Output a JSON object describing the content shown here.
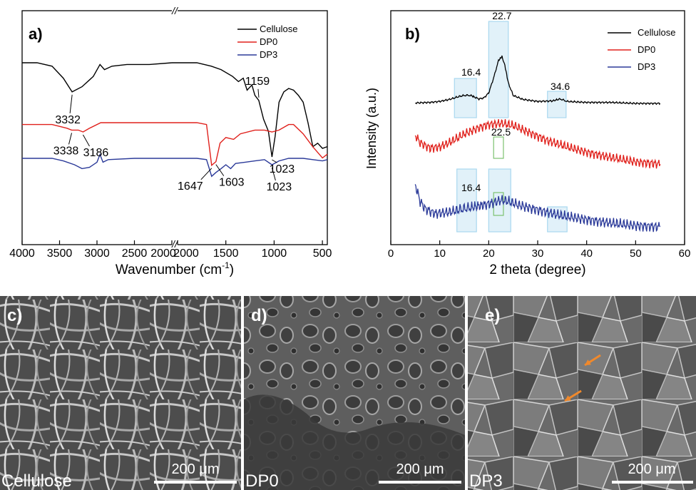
{
  "chart_data": [
    {
      "panel": "a)",
      "type": "line",
      "xlabel_main": "Wavenumber (cm",
      "xlabel_sup": "-1",
      "xlabel_close": ")",
      "x_ticks": [
        "4000",
        "3500",
        "3000",
        "2500",
        "2000",
        "2000",
        "1500",
        "1000",
        "500"
      ],
      "xlim_left": [
        4000,
        2000
      ],
      "xlim_right": [
        2000,
        450
      ],
      "axis_break": "//",
      "legend_placement": "top-right",
      "series": [
        {
          "name": "Cellulose",
          "color": "#000000",
          "points": [
            [
              4000,
              0.95
            ],
            [
              3800,
              0.95
            ],
            [
              3600,
              0.93
            ],
            [
              3450,
              0.86
            ],
            [
              3332,
              0.78
            ],
            [
              3200,
              0.81
            ],
            [
              3050,
              0.87
            ],
            [
              2960,
              0.94
            ],
            [
              2900,
              0.91
            ],
            [
              2800,
              0.93
            ],
            [
              2600,
              0.94
            ],
            [
              2300,
              0.94
            ],
            [
              2000,
              0.95
            ],
            [
              1800,
              0.95
            ],
            [
              1650,
              0.93
            ],
            [
              1550,
              0.91
            ],
            [
              1430,
              0.87
            ],
            [
              1370,
              0.84
            ],
            [
              1320,
              0.86
            ],
            [
              1280,
              0.79
            ],
            [
              1230,
              0.82
            ],
            [
              1200,
              0.76
            ],
            [
              1159,
              0.73
            ],
            [
              1110,
              0.62
            ],
            [
              1060,
              0.55
            ],
            [
              1023,
              0.4
            ],
            [
              990,
              0.52
            ],
            [
              950,
              0.72
            ],
            [
              900,
              0.78
            ],
            [
              850,
              0.8
            ],
            [
              800,
              0.79
            ],
            [
              750,
              0.76
            ],
            [
              700,
              0.72
            ],
            [
              650,
              0.6
            ],
            [
              600,
              0.46
            ],
            [
              550,
              0.48
            ],
            [
              500,
              0.45
            ],
            [
              450,
              0.46
            ]
          ]
        },
        {
          "name": "DP0",
          "color": "#e0211c",
          "points": [
            [
              4000,
              0.4
            ],
            [
              3600,
              0.4
            ],
            [
              3400,
              0.38
            ],
            [
              3338,
              0.37
            ],
            [
              3250,
              0.37
            ],
            [
              3186,
              0.36
            ],
            [
              3100,
              0.38
            ],
            [
              2950,
              0.41
            ],
            [
              2850,
              0.41
            ],
            [
              2500,
              0.41
            ],
            [
              2000,
              0.41
            ],
            [
              1800,
              0.41
            ],
            [
              1700,
              0.4
            ],
            [
              1647,
              0.18
            ],
            [
              1603,
              0.2
            ],
            [
              1560,
              0.3
            ],
            [
              1500,
              0.33
            ],
            [
              1420,
              0.32
            ],
            [
              1350,
              0.35
            ],
            [
              1200,
              0.37
            ],
            [
              1100,
              0.37
            ],
            [
              1023,
              0.36
            ],
            [
              950,
              0.37
            ],
            [
              850,
              0.4
            ],
            [
              800,
              0.4
            ],
            [
              700,
              0.35
            ],
            [
              600,
              0.28
            ],
            [
              500,
              0.22
            ],
            [
              450,
              0.24
            ]
          ]
        },
        {
          "name": "DP3",
          "color": "#2b3a99",
          "points": [
            [
              4000,
              0.2
            ],
            [
              3600,
              0.2
            ],
            [
              3450,
              0.18
            ],
            [
              3300,
              0.15
            ],
            [
              3200,
              0.12
            ],
            [
              3100,
              0.13
            ],
            [
              3000,
              0.17
            ],
            [
              2960,
              0.23
            ],
            [
              2920,
              0.17
            ],
            [
              2850,
              0.19
            ],
            [
              2500,
              0.2
            ],
            [
              2000,
              0.2
            ],
            [
              1800,
              0.2
            ],
            [
              1700,
              0.19
            ],
            [
              1647,
              0.06
            ],
            [
              1603,
              0.09
            ],
            [
              1550,
              0.12
            ],
            [
              1500,
              0.15
            ],
            [
              1450,
              0.12
            ],
            [
              1400,
              0.16
            ],
            [
              1300,
              0.17
            ],
            [
              1200,
              0.18
            ],
            [
              1100,
              0.19
            ],
            [
              1023,
              0.15
            ],
            [
              950,
              0.18
            ],
            [
              850,
              0.2
            ],
            [
              700,
              0.2
            ],
            [
              600,
              0.19
            ],
            [
              500,
              0.18
            ],
            [
              450,
              0.19
            ]
          ]
        }
      ],
      "peak_labels": [
        {
          "text": "3332",
          "x": 3332,
          "series": "Cellulose"
        },
        {
          "text": "1159",
          "x": 1159,
          "series": "Cellulose"
        },
        {
          "text": "1023",
          "x": 1023,
          "series": "Cellulose"
        },
        {
          "text": "3338",
          "x": 3338,
          "series": "DP0"
        },
        {
          "text": "3186",
          "x": 3186,
          "series": "DP0"
        },
        {
          "text": "1647",
          "x": 1647,
          "series": "DP0"
        },
        {
          "text": "1603",
          "x": 1603,
          "series": "DP0"
        },
        {
          "text": "1023",
          "x": 1023,
          "series": "DP3"
        }
      ]
    },
    {
      "panel": "b)",
      "type": "line",
      "xlabel": "2 theta (degree)",
      "ylabel": "Intensity (a.u.)",
      "xlim": [
        0,
        60
      ],
      "x_ticks": [
        "0",
        "10",
        "20",
        "30",
        "40",
        "50",
        "60"
      ],
      "legend_placement": "top-right",
      "series": [
        {
          "name": "Cellulose",
          "color": "#000000",
          "points": [
            [
              5,
              0.85
            ],
            [
              8,
              0.86
            ],
            [
              10,
              0.88
            ],
            [
              12,
              0.92
            ],
            [
              14,
              0.98
            ],
            [
              15,
              1.0
            ],
            [
              16.4,
              1.0
            ],
            [
              17,
              0.97
            ],
            [
              18,
              0.93
            ],
            [
              19,
              0.95
            ],
            [
              20,
              1.05
            ],
            [
              21,
              1.35
            ],
            [
              22,
              1.7
            ],
            [
              22.7,
              1.78
            ],
            [
              23.3,
              1.6
            ],
            [
              24,
              1.25
            ],
            [
              25,
              1.0
            ],
            [
              27,
              0.92
            ],
            [
              30,
              0.88
            ],
            [
              33,
              0.89
            ],
            [
              34.6,
              0.93
            ],
            [
              36,
              0.88
            ],
            [
              40,
              0.86
            ],
            [
              45,
              0.86
            ],
            [
              50,
              0.84
            ],
            [
              55,
              0.84
            ]
          ]
        },
        {
          "name": "DP0",
          "color": "#e0211c",
          "points": [
            [
              5,
              0.45
            ],
            [
              6,
              0.38
            ],
            [
              8,
              0.33
            ],
            [
              10,
              0.34
            ],
            [
              12,
              0.38
            ],
            [
              15,
              0.46
            ],
            [
              18,
              0.52
            ],
            [
              20,
              0.55
            ],
            [
              22.5,
              0.56
            ],
            [
              25,
              0.54
            ],
            [
              28,
              0.48
            ],
            [
              32,
              0.4
            ],
            [
              36,
              0.34
            ],
            [
              40,
              0.29
            ],
            [
              45,
              0.24
            ],
            [
              50,
              0.2
            ],
            [
              55,
              0.18
            ]
          ]
        },
        {
          "name": "DP3",
          "color": "#2b3a99",
          "points": [
            [
              5,
              0.4
            ],
            [
              6,
              0.26
            ],
            [
              7,
              0.2
            ],
            [
              9,
              0.16
            ],
            [
              12,
              0.17
            ],
            [
              14,
              0.19
            ],
            [
              16.4,
              0.21
            ],
            [
              19,
              0.23
            ],
            [
              21,
              0.25
            ],
            [
              22.5,
              0.27
            ],
            [
              24,
              0.26
            ],
            [
              26,
              0.23
            ],
            [
              30,
              0.19
            ],
            [
              35,
              0.14
            ],
            [
              40,
              0.11
            ],
            [
              45,
              0.08
            ],
            [
              50,
              0.06
            ],
            [
              55,
              0.05
            ]
          ]
        }
      ],
      "peak_labels": [
        {
          "text": "16.4",
          "x": 16.4,
          "series": "Cellulose"
        },
        {
          "text": "22.7",
          "x": 22.7,
          "series": "Cellulose"
        },
        {
          "text": "34.6",
          "x": 34.6,
          "series": "Cellulose"
        },
        {
          "text": "22.5",
          "x": 22.5,
          "series": "DP0"
        },
        {
          "text": "16.4",
          "x": 16.4,
          "series": "DP3"
        }
      ],
      "highlight_boxes": [
        {
          "x0": 13,
          "x1": 17.5,
          "series": "Cellulose",
          "color": "#a9d8ef"
        },
        {
          "x0": 20,
          "x1": 24,
          "series": "Cellulose",
          "color": "#a9d8ef"
        },
        {
          "x0": 32,
          "x1": 35.8,
          "series": "Cellulose",
          "color": "#a9d8ef"
        },
        {
          "x0": 21,
          "x1": 23,
          "series": "DP0",
          "color": "#7cc26f"
        },
        {
          "x0": 13.5,
          "x1": 17.5,
          "series": "DP3",
          "color": "#a9d8ef"
        },
        {
          "x0": 20,
          "x1": 24.5,
          "series": "DP3",
          "color": "#a9d8ef"
        },
        {
          "x0": 21,
          "x1": 23,
          "series": "DP3",
          "color": "#7cc26f"
        },
        {
          "x0": 32,
          "x1": 36,
          "series": "DP3",
          "color": "#a9d8ef"
        }
      ]
    }
  ],
  "micrographs": [
    {
      "panel": "c)",
      "sample": "Cellulose",
      "scale_bar": "200 μm"
    },
    {
      "panel": "d)",
      "sample": "DP0",
      "scale_bar": "200 μm"
    },
    {
      "panel": "e)",
      "sample": "DP3",
      "scale_bar": "200 μm"
    }
  ],
  "colors": {
    "arrow_orange": "#f0892c"
  }
}
